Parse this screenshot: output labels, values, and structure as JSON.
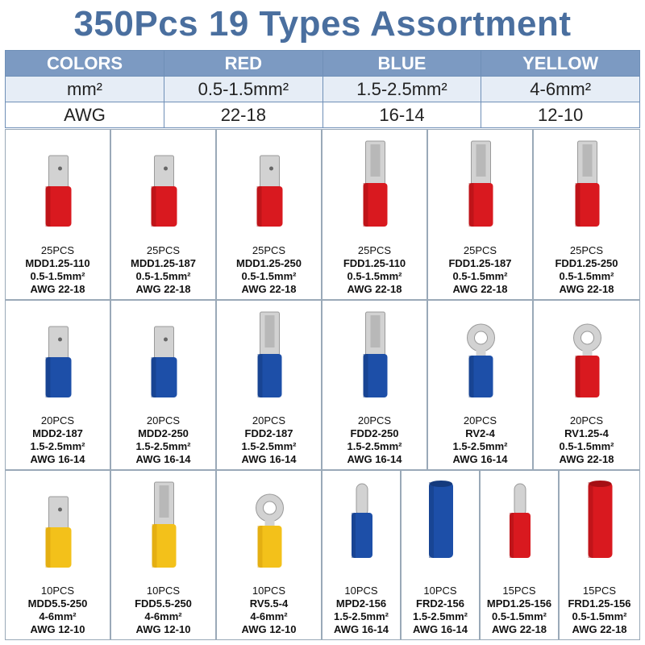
{
  "title": "350Pcs 19 Types Assortment",
  "table": {
    "header": [
      "COLORS",
      "RED",
      "BLUE",
      "YELLOW"
    ],
    "mm2": [
      "mm²",
      "0.5-1.5mm²",
      "1.5-2.5mm²",
      "4-6mm²"
    ],
    "awg": [
      "AWG",
      "22-18",
      "16-14",
      "12-10"
    ]
  },
  "colors": {
    "red": "#d9191f",
    "blue": "#1d4fa8",
    "yellow": "#f3c11a",
    "metal": "#cfcfcf",
    "title": "#4a6f9f",
    "header_bg": "#7c9ac2"
  },
  "items": [
    {
      "qty": "25PCS",
      "model": "MDD1.25-110",
      "size": "0.5-1.5mm²",
      "awg": "AWG 22-18",
      "shape": "male",
      "color": "red"
    },
    {
      "qty": "25PCS",
      "model": "MDD1.25-187",
      "size": "0.5-1.5mm²",
      "awg": "AWG 22-18",
      "shape": "male",
      "color": "red"
    },
    {
      "qty": "25PCS",
      "model": "MDD1.25-250",
      "size": "0.5-1.5mm²",
      "awg": "AWG 22-18",
      "shape": "male",
      "color": "red"
    },
    {
      "qty": "25PCS",
      "model": "FDD1.25-110",
      "size": "0.5-1.5mm²",
      "awg": "AWG 22-18",
      "shape": "female",
      "color": "red"
    },
    {
      "qty": "25PCS",
      "model": "FDD1.25-187",
      "size": "0.5-1.5mm²",
      "awg": "AWG 22-18",
      "shape": "female",
      "color": "red"
    },
    {
      "qty": "25PCS",
      "model": "FDD1.25-250",
      "size": "0.5-1.5mm²",
      "awg": "AWG 22-18",
      "shape": "female",
      "color": "red"
    },
    {
      "qty": "20PCS",
      "model": "MDD2-187",
      "size": "1.5-2.5mm²",
      "awg": "AWG 16-14",
      "shape": "male",
      "color": "blue"
    },
    {
      "qty": "20PCS",
      "model": "MDD2-250",
      "size": "1.5-2.5mm²",
      "awg": "AWG 16-14",
      "shape": "male",
      "color": "blue"
    },
    {
      "qty": "20PCS",
      "model": "FDD2-187",
      "size": "1.5-2.5mm²",
      "awg": "AWG 16-14",
      "shape": "female",
      "color": "blue"
    },
    {
      "qty": "20PCS",
      "model": "FDD2-250",
      "size": "1.5-2.5mm²",
      "awg": "AWG 16-14",
      "shape": "female",
      "color": "blue"
    },
    {
      "qty": "20PCS",
      "model": "RV2-4",
      "size": "1.5-2.5mm²",
      "awg": "AWG 16-14",
      "shape": "ring",
      "color": "blue"
    },
    {
      "qty": "20PCS",
      "model": "RV1.25-4",
      "size": "0.5-1.5mm²",
      "awg": "AWG 22-18",
      "shape": "ring",
      "color": "red"
    },
    {
      "qty": "10PCS",
      "model": "MDD5.5-250",
      "size": "4-6mm²",
      "awg": "AWG 12-10",
      "shape": "male",
      "color": "yellow"
    },
    {
      "qty": "10PCS",
      "model": "FDD5.5-250",
      "size": "4-6mm²",
      "awg": "AWG 12-10",
      "shape": "female",
      "color": "yellow"
    },
    {
      "qty": "10PCS",
      "model": "RV5.5-4",
      "size": "4-6mm²",
      "awg": "AWG 12-10",
      "shape": "ring",
      "color": "yellow"
    },
    {
      "qty": "10PCS",
      "model": "MPD2-156",
      "size": "1.5-2.5mm²",
      "awg": "AWG 16-14",
      "shape": "bullet",
      "color": "blue"
    },
    {
      "qty": "10PCS",
      "model": "FRD2-156",
      "size": "1.5-2.5mm²",
      "awg": "AWG 16-14",
      "shape": "socket",
      "color": "blue"
    },
    {
      "qty": "15PCS",
      "model": "MPD1.25-156",
      "size": "0.5-1.5mm²",
      "awg": "AWG 22-18",
      "shape": "bullet",
      "color": "red"
    },
    {
      "qty": "15PCS",
      "model": "FRD1.25-156",
      "size": "0.5-1.5mm²",
      "awg": "AWG 22-18",
      "shape": "socket",
      "color": "red"
    }
  ]
}
